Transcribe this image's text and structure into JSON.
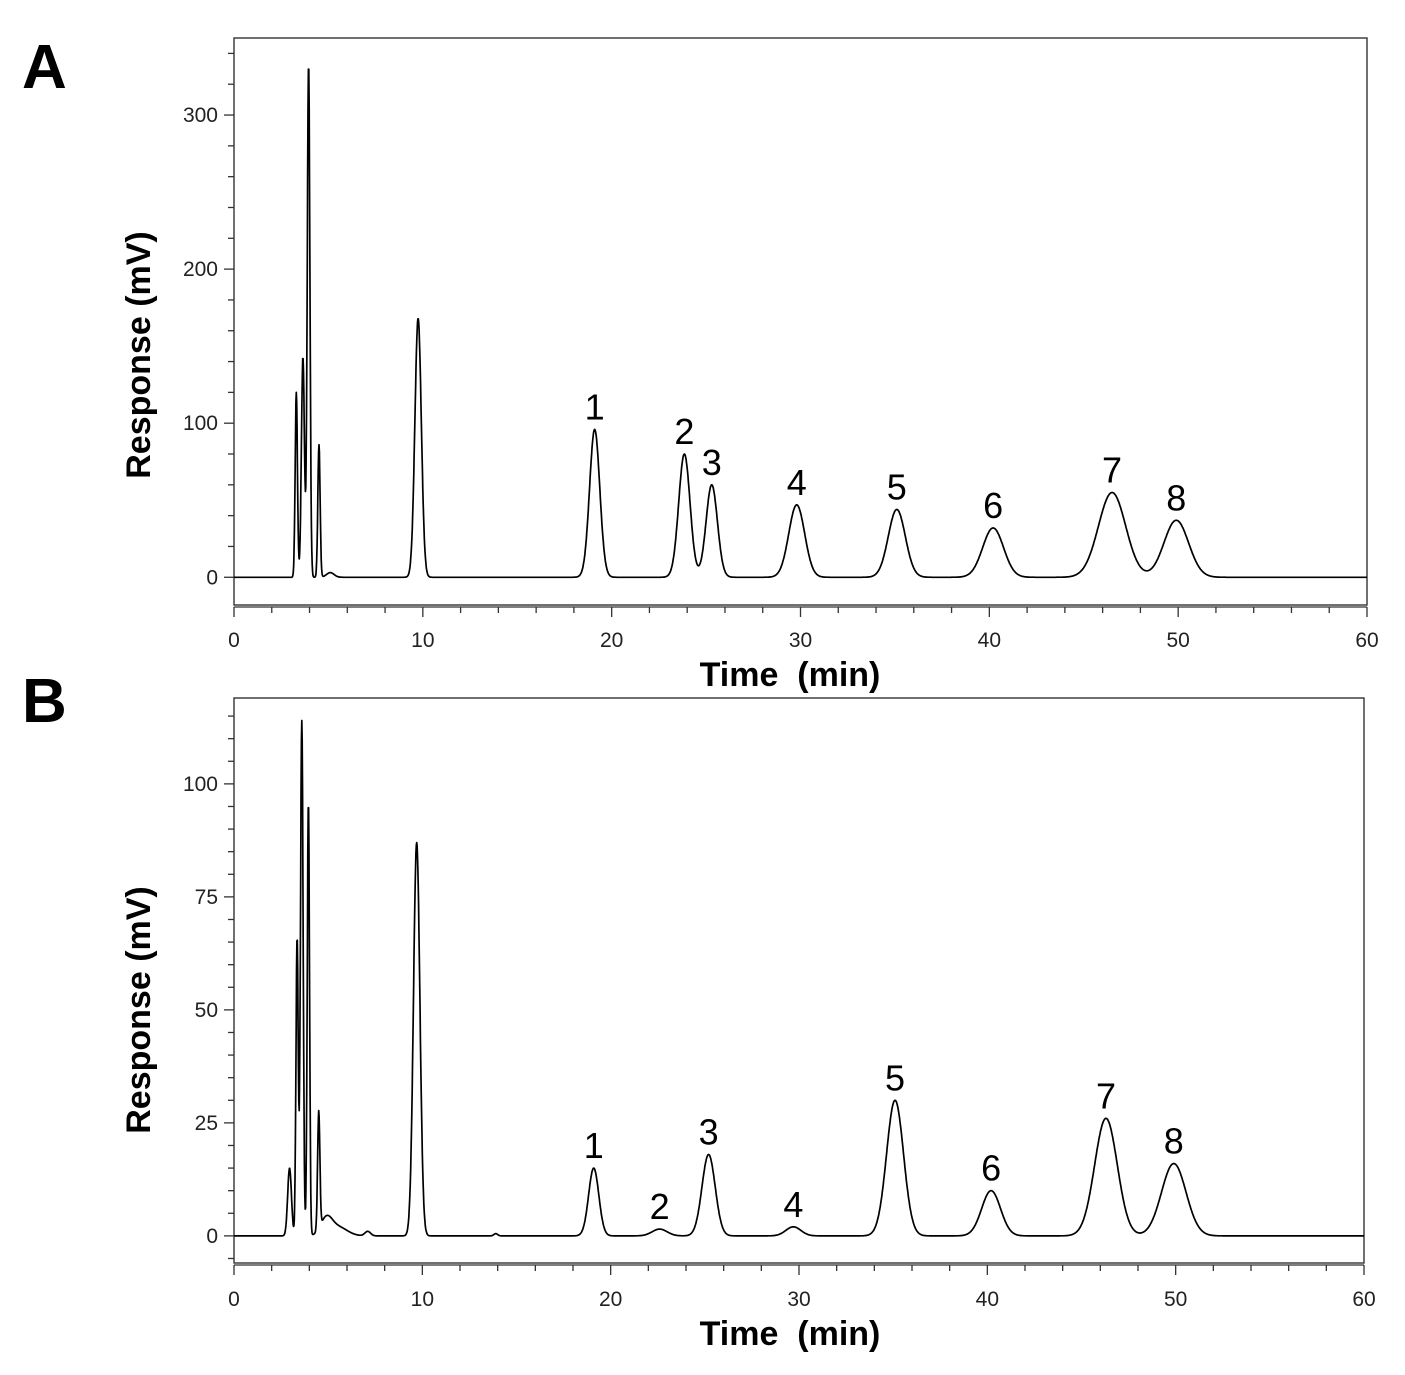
{
  "chart_data": [
    {
      "panel": "A",
      "type": "line",
      "xlabel": "Time  (min)",
      "ylabel": "Response (mV)",
      "xlim": [
        0,
        60
      ],
      "ylim": [
        -18,
        350
      ],
      "xticks": [
        0,
        10,
        20,
        30,
        40,
        50,
        60
      ],
      "yticks": [
        0,
        100,
        200,
        300
      ],
      "peaks": [
        {
          "t": 3.3,
          "h": 120,
          "w": 0.06
        },
        {
          "t": 3.65,
          "h": 143,
          "w": 0.08
        },
        {
          "t": 3.95,
          "h": 333,
          "w": 0.07
        },
        {
          "t": 4.5,
          "h": 86,
          "w": 0.06
        },
        {
          "t": 5.1,
          "h": 3,
          "w": 0.2
        },
        {
          "t": 9.75,
          "h": 168,
          "w": 0.17
        },
        {
          "t": 19.1,
          "h": 96,
          "w": 0.27
        },
        {
          "t": 23.85,
          "h": 80,
          "w": 0.3
        },
        {
          "t": 25.3,
          "h": 60,
          "w": 0.3
        },
        {
          "t": 29.8,
          "h": 47,
          "w": 0.42
        },
        {
          "t": 35.1,
          "h": 44,
          "w": 0.45
        },
        {
          "t": 40.2,
          "h": 32,
          "w": 0.55
        },
        {
          "t": 46.5,
          "h": 55,
          "w": 0.72
        },
        {
          "t": 49.9,
          "h": 37,
          "w": 0.65
        }
      ],
      "peak_labels": [
        {
          "label": "1",
          "t": 19.1,
          "y": 96
        },
        {
          "label": "2",
          "t": 23.85,
          "y": 80
        },
        {
          "label": "3",
          "t": 25.3,
          "y": 60
        },
        {
          "label": "4",
          "t": 29.8,
          "y": 47
        },
        {
          "label": "5",
          "t": 35.1,
          "y": 44
        },
        {
          "label": "6",
          "t": 40.2,
          "y": 32
        },
        {
          "label": "7",
          "t": 46.5,
          "y": 55
        },
        {
          "label": "8",
          "t": 49.9,
          "y": 37
        }
      ]
    },
    {
      "panel": "B",
      "type": "line",
      "xlabel": "Time  (min)",
      "ylabel": "Response (mV)",
      "xlim": [
        0,
        60
      ],
      "ylim": [
        -6,
        119
      ],
      "xticks": [
        0,
        10,
        20,
        30,
        40,
        50,
        60
      ],
      "yticks": [
        0,
        25,
        50,
        75,
        100
      ],
      "peaks": [
        {
          "t": 2.95,
          "h": 15,
          "w": 0.1
        },
        {
          "t": 3.35,
          "h": 66,
          "w": 0.06
        },
        {
          "t": 3.6,
          "h": 114,
          "w": 0.07
        },
        {
          "t": 3.95,
          "h": 96,
          "w": 0.06
        },
        {
          "t": 4.5,
          "h": 26,
          "w": 0.06
        },
        {
          "t": 4.9,
          "h": 3.5,
          "w": 0.3
        },
        {
          "t": 5.5,
          "h": 2,
          "w": 0.5
        },
        {
          "t": 7.1,
          "h": 1,
          "w": 0.15
        },
        {
          "t": 9.7,
          "h": 87,
          "w": 0.17
        },
        {
          "t": 13.9,
          "h": 0.5,
          "w": 0.1
        },
        {
          "t": 19.1,
          "h": 15,
          "w": 0.27
        },
        {
          "t": 22.6,
          "h": 1.5,
          "w": 0.4
        },
        {
          "t": 25.2,
          "h": 18,
          "w": 0.35
        },
        {
          "t": 29.7,
          "h": 2,
          "w": 0.4
        },
        {
          "t": 35.1,
          "h": 30,
          "w": 0.45
        },
        {
          "t": 40.2,
          "h": 10,
          "w": 0.5
        },
        {
          "t": 46.3,
          "h": 26,
          "w": 0.6
        },
        {
          "t": 49.9,
          "h": 16,
          "w": 0.65
        }
      ],
      "peak_labels": [
        {
          "label": "1",
          "t": 19.1,
          "y": 15
        },
        {
          "label": "2",
          "t": 22.6,
          "y": 1.5
        },
        {
          "label": "3",
          "t": 25.2,
          "y": 18
        },
        {
          "label": "4",
          "t": 29.7,
          "y": 2
        },
        {
          "label": "5",
          "t": 35.1,
          "y": 30
        },
        {
          "label": "6",
          "t": 40.2,
          "y": 10
        },
        {
          "label": "7",
          "t": 46.3,
          "y": 26
        },
        {
          "label": "8",
          "t": 49.9,
          "y": 16
        }
      ]
    }
  ]
}
